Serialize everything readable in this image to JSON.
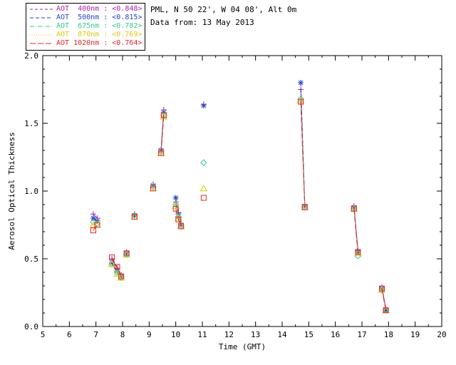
{
  "header": {
    "station_line": "PML, N 50 22', W 04 08', Alt 0m",
    "date_line": "Data from: 13 May 2013"
  },
  "legend": {
    "entries": [
      {
        "label": "AOT  400nm : <0.848>",
        "color": "#aa22aa",
        "marker": "plus",
        "dash": ""
      },
      {
        "label": "AOT  500nm : <0.815>",
        "color": "#2244cc",
        "marker": "asterisk",
        "dash": "5 3"
      },
      {
        "label": "AOT  675nm : <0.782>",
        "color": "#2ecc8f",
        "marker": "diamond",
        "dash": "6 2 1 2"
      },
      {
        "label": "AOT  870nm : <0.769>",
        "color": "#ddcc00",
        "marker": "triangle",
        "dash": "1 2"
      },
      {
        "label": "AOT 1020nm : <0.764>",
        "color": "#ee2222",
        "marker": "square",
        "dash": "8 3"
      }
    ]
  },
  "chart_data": {
    "type": "scatter",
    "title": "",
    "xlabel": "Time (GMT)",
    "ylabel": "Aerosol Optical Thickness",
    "xlim": [
      5,
      20
    ],
    "ylim": [
      0.0,
      2.0
    ],
    "xticks": [
      5,
      6,
      7,
      8,
      9,
      10,
      11,
      12,
      13,
      14,
      15,
      16,
      17,
      18,
      19,
      20
    ],
    "yticks": [
      0.0,
      0.5,
      1.0,
      1.5,
      2.0
    ],
    "grid": false,
    "legend_position": "top-left",
    "series": [
      {
        "name": "AOT 400nm",
        "wavelength_nm": 400,
        "mean_label": "<0.848>",
        "color": "#aa22aa",
        "marker": "plus",
        "dash": "",
        "segments": [
          {
            "x": [
              6.9,
              7.05
            ],
            "y": [
              0.83,
              0.8
            ]
          },
          {
            "x": [
              7.6,
              7.8,
              7.95
            ],
            "y": [
              0.5,
              0.43,
              0.38
            ]
          },
          {
            "x": [
              8.15
            ],
            "y": [
              0.55
            ]
          },
          {
            "x": [
              8.45
            ],
            "y": [
              0.83
            ]
          },
          {
            "x": [
              9.15
            ],
            "y": [
              1.05
            ]
          },
          {
            "x": [
              9.45,
              9.55
            ],
            "y": [
              1.31,
              1.6
            ]
          },
          {
            "x": [
              10.0,
              10.1,
              10.2
            ],
            "y": [
              0.92,
              0.84,
              0.76
            ]
          },
          {
            "x": [
              11.05
            ],
            "y": [
              1.64
            ]
          },
          {
            "x": [
              14.7,
              14.85
            ],
            "y": [
              1.75,
              0.9
            ]
          },
          {
            "x": [
              16.7,
              16.85
            ],
            "y": [
              0.89,
              0.56
            ]
          },
          {
            "x": [
              17.75,
              17.9
            ],
            "y": [
              0.29,
              0.13
            ]
          }
        ]
      },
      {
        "name": "AOT 500nm",
        "wavelength_nm": 500,
        "mean_label": "<0.815>",
        "color": "#2244cc",
        "marker": "asterisk",
        "dash": "5 3",
        "segments": [
          {
            "x": [
              6.9,
              7.05
            ],
            "y": [
              0.8,
              0.78
            ]
          },
          {
            "x": [
              7.6,
              7.8,
              7.95
            ],
            "y": [
              0.47,
              0.41,
              0.37
            ]
          },
          {
            "x": [
              8.15
            ],
            "y": [
              0.54
            ]
          },
          {
            "x": [
              8.45
            ],
            "y": [
              0.82
            ]
          },
          {
            "x": [
              9.15
            ],
            "y": [
              1.04
            ]
          },
          {
            "x": [
              9.45,
              9.55
            ],
            "y": [
              1.3,
              1.58
            ]
          },
          {
            "x": [
              10.0,
              10.1,
              10.2
            ],
            "y": [
              0.95,
              0.83,
              0.75
            ]
          },
          {
            "x": [
              11.05
            ],
            "y": [
              1.63
            ]
          },
          {
            "x": [
              14.7,
              14.85
            ],
            "y": [
              1.8,
              0.89
            ]
          },
          {
            "x": [
              16.7,
              16.85
            ],
            "y": [
              0.88,
              0.55
            ]
          },
          {
            "x": [
              17.75,
              17.9
            ],
            "y": [
              0.28,
              0.12
            ]
          }
        ]
      },
      {
        "name": "AOT 675nm",
        "wavelength_nm": 675,
        "mean_label": "<0.782>",
        "color": "#2ecc8f",
        "marker": "diamond",
        "dash": "6 2 1 2",
        "segments": [
          {
            "x": [
              6.9,
              7.05
            ],
            "y": [
              0.77,
              0.76
            ]
          },
          {
            "x": [
              7.6,
              7.8,
              7.95
            ],
            "y": [
              0.46,
              0.4,
              0.36
            ]
          },
          {
            "x": [
              8.15
            ],
            "y": [
              0.53
            ]
          },
          {
            "x": [
              8.45
            ],
            "y": [
              0.82
            ]
          },
          {
            "x": [
              9.15
            ],
            "y": [
              1.03
            ]
          },
          {
            "x": [
              9.45,
              9.55
            ],
            "y": [
              1.29,
              1.56
            ]
          },
          {
            "x": [
              10.0,
              10.1,
              10.2
            ],
            "y": [
              0.9,
              0.81,
              0.74
            ]
          },
          {
            "x": [
              11.05
            ],
            "y": [
              1.21
            ]
          },
          {
            "x": [
              14.7,
              14.85
            ],
            "y": [
              1.68,
              0.88
            ]
          },
          {
            "x": [
              16.7,
              16.85
            ],
            "y": [
              0.87,
              0.52
            ]
          },
          {
            "x": [
              17.75,
              17.9
            ],
            "y": [
              0.27,
              0.12
            ]
          }
        ]
      },
      {
        "name": "AOT 870nm",
        "wavelength_nm": 870,
        "mean_label": "<0.769>",
        "color": "#ddcc00",
        "marker": "triangle",
        "dash": "1 2",
        "segments": [
          {
            "x": [
              6.9,
              7.05
            ],
            "y": [
              0.75,
              0.75
            ]
          },
          {
            "x": [
              7.6,
              7.8,
              7.95
            ],
            "y": [
              0.46,
              0.39,
              0.36
            ]
          },
          {
            "x": [
              8.15
            ],
            "y": [
              0.53
            ]
          },
          {
            "x": [
              8.45
            ],
            "y": [
              0.81
            ]
          },
          {
            "x": [
              9.15
            ],
            "y": [
              1.02
            ]
          },
          {
            "x": [
              9.45,
              9.55
            ],
            "y": [
              1.28,
              1.55
            ]
          },
          {
            "x": [
              10.0,
              10.1,
              10.2
            ],
            "y": [
              0.89,
              0.8,
              0.74
            ]
          },
          {
            "x": [
              11.05
            ],
            "y": [
              1.02
            ]
          },
          {
            "x": [
              14.7,
              14.85
            ],
            "y": [
              1.67,
              0.88
            ]
          },
          {
            "x": [
              16.7,
              16.85
            ],
            "y": [
              0.87,
              0.54
            ]
          },
          {
            "x": [
              17.75,
              17.9
            ],
            "y": [
              0.27,
              0.12
            ]
          }
        ]
      },
      {
        "name": "AOT 1020nm",
        "wavelength_nm": 1020,
        "mean_label": "<0.764>",
        "color": "#ee2222",
        "marker": "square",
        "dash": "8 3",
        "segments": [
          {
            "x": [
              6.9,
              7.05
            ],
            "y": [
              0.71,
              0.75
            ]
          },
          {
            "x": [
              7.6,
              7.8,
              7.95
            ],
            "y": [
              0.51,
              0.44,
              0.37
            ]
          },
          {
            "x": [
              8.15
            ],
            "y": [
              0.54
            ]
          },
          {
            "x": [
              8.45
            ],
            "y": [
              0.81
            ]
          },
          {
            "x": [
              9.15
            ],
            "y": [
              1.02
            ]
          },
          {
            "x": [
              9.45,
              9.55
            ],
            "y": [
              1.28,
              1.56
            ]
          },
          {
            "x": [
              10.0,
              10.1,
              10.2
            ],
            "y": [
              0.87,
              0.79,
              0.74
            ]
          },
          {
            "x": [
              11.05
            ],
            "y": [
              0.95
            ]
          },
          {
            "x": [
              14.7,
              14.85
            ],
            "y": [
              1.66,
              0.88
            ]
          },
          {
            "x": [
              16.7,
              16.85
            ],
            "y": [
              0.87,
              0.55
            ]
          },
          {
            "x": [
              17.75,
              17.9
            ],
            "y": [
              0.28,
              0.12
            ]
          }
        ]
      }
    ]
  }
}
